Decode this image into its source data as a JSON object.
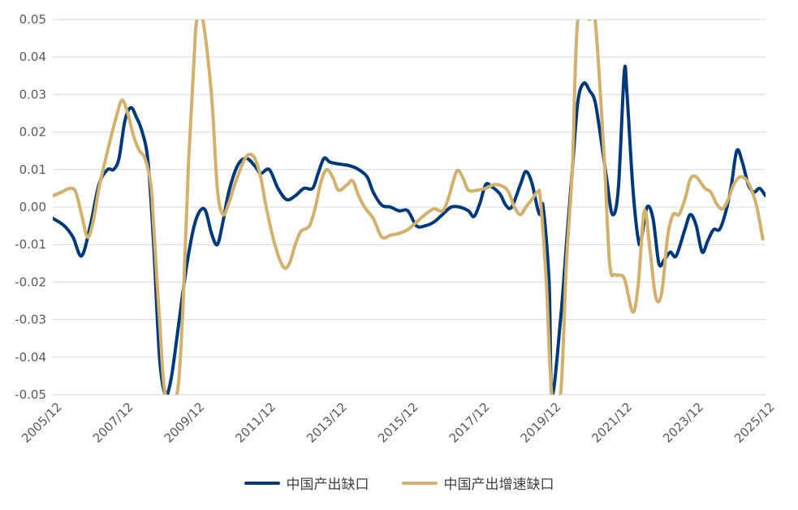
{
  "chart_data": {
    "type": "line",
    "title": "",
    "xlabel": "",
    "ylabel": "",
    "ylim": [
      -0.05,
      0.05
    ],
    "yticks": [
      "0.05",
      "0.04",
      "0.03",
      "0.02",
      "0.01",
      "0.00",
      "-0.01",
      "-0.02",
      "-0.03",
      "-0.04",
      "-0.05"
    ],
    "xlim": [
      2005.917,
      2025.917
    ],
    "xticks": [
      "2005/12",
      "2007/12",
      "2009/12",
      "2011/12",
      "2013/12",
      "2015/12",
      "2017/12",
      "2019/12",
      "2021/12",
      "2023/12",
      "2025/12"
    ],
    "grid": "horizontal",
    "legend_position": "bottom",
    "series": [
      {
        "name": "中国产出缺口",
        "color": "#003a7d",
        "points": [
          [
            2005.92,
            -0.003
          ],
          [
            2006.25,
            -0.005
          ],
          [
            2006.5,
            -0.008
          ],
          [
            2006.75,
            -0.013
          ],
          [
            2007.0,
            -0.005
          ],
          [
            2007.25,
            0.006
          ],
          [
            2007.5,
            0.01
          ],
          [
            2007.67,
            0.01
          ],
          [
            2007.83,
            0.013
          ],
          [
            2008.0,
            0.023
          ],
          [
            2008.17,
            0.0265
          ],
          [
            2008.33,
            0.024
          ],
          [
            2008.5,
            0.02
          ],
          [
            2008.67,
            0.012
          ],
          [
            2008.83,
            -0.01
          ],
          [
            2009.0,
            -0.04
          ],
          [
            2009.17,
            -0.05
          ],
          [
            2009.33,
            -0.046
          ],
          [
            2009.5,
            -0.035
          ],
          [
            2009.67,
            -0.023
          ],
          [
            2009.83,
            -0.013
          ],
          [
            2010.0,
            -0.005
          ],
          [
            2010.17,
            -0.001
          ],
          [
            2010.33,
            -0.001
          ],
          [
            2010.5,
            -0.007
          ],
          [
            2010.67,
            -0.01
          ],
          [
            2010.83,
            -0.004
          ],
          [
            2011.0,
            0.004
          ],
          [
            2011.25,
            0.011
          ],
          [
            2011.5,
            0.013
          ],
          [
            2011.75,
            0.011
          ],
          [
            2011.92,
            0.009
          ],
          [
            2012.17,
            0.01
          ],
          [
            2012.42,
            0.005
          ],
          [
            2012.67,
            0.002
          ],
          [
            2012.92,
            0.003
          ],
          [
            2013.17,
            0.005
          ],
          [
            2013.42,
            0.005
          ],
          [
            2013.58,
            0.009
          ],
          [
            2013.75,
            0.013
          ],
          [
            2013.92,
            0.012
          ],
          [
            2014.17,
            0.0115
          ],
          [
            2014.5,
            0.011
          ],
          [
            2014.75,
            0.01
          ],
          [
            2015.0,
            0.008
          ],
          [
            2015.17,
            0.004
          ],
          [
            2015.42,
            0.0005
          ],
          [
            2015.67,
            0.0
          ],
          [
            2015.92,
            -0.001
          ],
          [
            2016.17,
            -0.001
          ],
          [
            2016.42,
            -0.005
          ],
          [
            2016.67,
            -0.005
          ],
          [
            2016.92,
            -0.004
          ],
          [
            2017.17,
            -0.002
          ],
          [
            2017.42,
            0.0
          ],
          [
            2017.67,
            0.0
          ],
          [
            2017.92,
            -0.001
          ],
          [
            2018.08,
            -0.0025
          ],
          [
            2018.25,
            0.001
          ],
          [
            2018.42,
            0.006
          ],
          [
            2018.58,
            0.0055
          ],
          [
            2018.83,
            0.0035
          ],
          [
            2019.0,
            0.0005
          ],
          [
            2019.17,
            0.0
          ],
          [
            2019.42,
            0.006
          ],
          [
            2019.58,
            0.0095
          ],
          [
            2019.75,
            0.0065
          ],
          [
            2019.92,
            -0.0005
          ],
          [
            2020.0,
            -0.002
          ],
          [
            2020.08,
            0.0
          ],
          [
            2020.25,
            -0.02
          ],
          [
            2020.33,
            -0.05
          ],
          [
            2020.58,
            -0.03
          ],
          [
            2020.75,
            -0.01
          ],
          [
            2020.92,
            0.01
          ],
          [
            2021.08,
            0.028
          ],
          [
            2021.25,
            0.033
          ],
          [
            2021.42,
            0.031
          ],
          [
            2021.58,
            0.028
          ],
          [
            2021.75,
            0.018
          ],
          [
            2021.92,
            0.007
          ],
          [
            2022.08,
            -0.002
          ],
          [
            2022.25,
            0.005
          ],
          [
            2022.42,
            0.036
          ],
          [
            2022.5,
            0.03
          ],
          [
            2022.67,
            0.005
          ],
          [
            2022.83,
            -0.009
          ],
          [
            2022.92,
            -0.008
          ],
          [
            2023.08,
            0.0
          ],
          [
            2023.25,
            -0.003
          ],
          [
            2023.42,
            -0.015
          ],
          [
            2023.58,
            -0.014
          ],
          [
            2023.75,
            -0.012
          ],
          [
            2023.92,
            -0.013
          ],
          [
            2024.17,
            -0.006
          ],
          [
            2024.33,
            -0.002
          ],
          [
            2024.5,
            -0.005
          ],
          [
            2024.67,
            -0.012
          ],
          [
            2024.83,
            -0.009
          ],
          [
            2025.0,
            -0.006
          ],
          [
            2025.17,
            -0.006
          ],
          [
            2025.33,
            -0.002
          ],
          [
            2025.5,
            0.005
          ],
          [
            2025.67,
            0.015
          ],
          [
            2025.83,
            0.012
          ],
          [
            2026.0,
            0.006
          ],
          [
            2026.17,
            0.004
          ],
          [
            2026.33,
            0.005
          ],
          [
            2026.5,
            0.003
          ]
        ]
      },
      {
        "name": "中国产出增速缺口",
        "color": "#d4b06a",
        "points": [
          [
            2005.92,
            0.003
          ],
          [
            2006.17,
            0.004
          ],
          [
            2006.42,
            0.005
          ],
          [
            2006.58,
            0.004
          ],
          [
            2006.75,
            -0.002
          ],
          [
            2006.92,
            -0.008
          ],
          [
            2007.08,
            -0.004
          ],
          [
            2007.25,
            0.005
          ],
          [
            2007.5,
            0.015
          ],
          [
            2007.75,
            0.024
          ],
          [
            2007.92,
            0.0285
          ],
          [
            2008.08,
            0.025
          ],
          [
            2008.25,
            0.019
          ],
          [
            2008.42,
            0.015
          ],
          [
            2008.58,
            0.013
          ],
          [
            2008.75,
            0.006
          ],
          [
            2008.83,
            -0.005
          ],
          [
            2009.0,
            -0.03
          ],
          [
            2009.17,
            -0.05
          ],
          [
            2009.5,
            -0.05
          ],
          [
            2009.67,
            -0.028
          ],
          [
            2009.83,
            0.01
          ],
          [
            2010.0,
            0.04
          ],
          [
            2010.08,
            0.05
          ],
          [
            2010.25,
            0.05
          ],
          [
            2010.5,
            0.03
          ],
          [
            2010.67,
            0.005
          ],
          [
            2010.83,
            -0.002
          ],
          [
            2011.0,
            0.001
          ],
          [
            2011.17,
            0.006
          ],
          [
            2011.42,
            0.012
          ],
          [
            2011.58,
            0.014
          ],
          [
            2011.75,
            0.013
          ],
          [
            2011.92,
            0.008
          ],
          [
            2012.08,
            0.0
          ],
          [
            2012.33,
            -0.01
          ],
          [
            2012.58,
            -0.016
          ],
          [
            2012.75,
            -0.015
          ],
          [
            2012.92,
            -0.01
          ],
          [
            2013.08,
            -0.0065
          ],
          [
            2013.33,
            -0.005
          ],
          [
            2013.5,
            0.0
          ],
          [
            2013.67,
            0.007
          ],
          [
            2013.83,
            0.01
          ],
          [
            2014.0,
            0.008
          ],
          [
            2014.17,
            0.0045
          ],
          [
            2014.42,
            0.006
          ],
          [
            2014.58,
            0.007
          ],
          [
            2014.75,
            0.003
          ],
          [
            2014.92,
            0.0
          ],
          [
            2015.17,
            -0.003
          ],
          [
            2015.42,
            -0.008
          ],
          [
            2015.67,
            -0.0075
          ],
          [
            2015.92,
            -0.007
          ],
          [
            2016.17,
            -0.006
          ],
          [
            2016.42,
            -0.004
          ],
          [
            2016.67,
            -0.002
          ],
          [
            2016.92,
            -0.0005
          ],
          [
            2017.17,
            -0.001
          ],
          [
            2017.33,
            0.002
          ],
          [
            2017.58,
            0.0095
          ],
          [
            2017.75,
            0.008
          ],
          [
            2017.92,
            0.0045
          ],
          [
            2018.17,
            0.0045
          ],
          [
            2018.42,
            0.005
          ],
          [
            2018.67,
            0.006
          ],
          [
            2018.92,
            0.0055
          ],
          [
            2019.08,
            0.004
          ],
          [
            2019.25,
            0.0
          ],
          [
            2019.42,
            -0.002
          ],
          [
            2019.58,
            0.0
          ],
          [
            2019.75,
            0.002
          ],
          [
            2019.92,
            0.004
          ],
          [
            2020.0,
            0.002
          ],
          [
            2020.17,
            -0.02
          ],
          [
            2020.33,
            -0.05
          ],
          [
            2020.58,
            -0.05
          ],
          [
            2020.75,
            -0.015
          ],
          [
            2020.92,
            0.01
          ],
          [
            2021.08,
            0.05
          ],
          [
            2021.42,
            0.05
          ],
          [
            2021.58,
            0.05
          ],
          [
            2021.83,
            0.015
          ],
          [
            2022.0,
            -0.015
          ],
          [
            2022.17,
            -0.018
          ],
          [
            2022.42,
            -0.019
          ],
          [
            2022.67,
            -0.028
          ],
          [
            2022.83,
            -0.02
          ],
          [
            2023.0,
            -0.001
          ],
          [
            2023.17,
            -0.012
          ],
          [
            2023.33,
            -0.024
          ],
          [
            2023.5,
            -0.023
          ],
          [
            2023.67,
            -0.008
          ],
          [
            2023.83,
            -0.002
          ],
          [
            2024.0,
            -0.002
          ],
          [
            2024.17,
            0.002
          ],
          [
            2024.33,
            0.0075
          ],
          [
            2024.5,
            0.008
          ],
          [
            2024.75,
            0.005
          ],
          [
            2024.92,
            0.004
          ],
          [
            2025.08,
            0.001
          ],
          [
            2025.25,
            -0.0005
          ],
          [
            2025.42,
            0.002
          ],
          [
            2025.58,
            0.006
          ],
          [
            2025.75,
            0.008
          ],
          [
            2025.92,
            0.0075
          ],
          [
            2026.08,
            0.005
          ],
          [
            2026.25,
            0.0
          ],
          [
            2026.42,
            -0.0085
          ]
        ]
      }
    ]
  }
}
